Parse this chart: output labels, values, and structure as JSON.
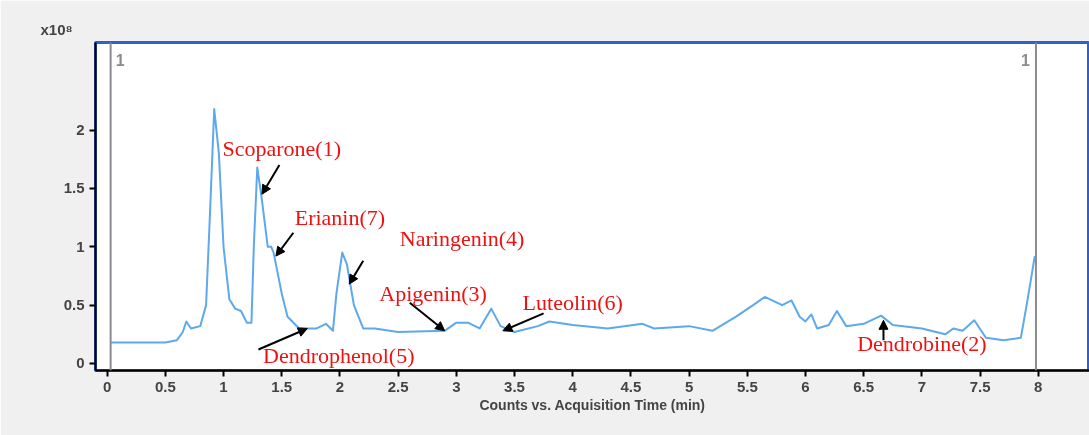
{
  "chart_data": {
    "type": "line",
    "xlabel": "Counts vs. Acquisition Time (min)",
    "ylabel": "x10⁸",
    "xlim": [
      -0.1,
      8.44
    ],
    "ylim": [
      -0.06,
      2.75
    ],
    "xticks": [
      0,
      0.5,
      1,
      1.5,
      2,
      2.5,
      3,
      3.5,
      4,
      4.5,
      5,
      5.5,
      6,
      6.5,
      7,
      7.5,
      8
    ],
    "yticks": [
      0,
      0.5,
      1,
      1.5,
      2
    ],
    "grid": false,
    "marker": "none",
    "line_style": "solid",
    "x": [
      0.03,
      0.5,
      0.6,
      0.65,
      0.68,
      0.72,
      0.8,
      0.85,
      0.88,
      0.92,
      0.96,
      1.0,
      1.05,
      1.1,
      1.15,
      1.2,
      1.24,
      1.26,
      1.29,
      1.33,
      1.38,
      1.41,
      1.43,
      1.5,
      1.55,
      1.65,
      1.8,
      1.88,
      1.94,
      1.97,
      2.02,
      2.06,
      2.12,
      2.2,
      2.3,
      2.5,
      2.9,
      3.0,
      3.1,
      3.2,
      3.3,
      3.38,
      3.5,
      3.7,
      3.8,
      4.0,
      4.3,
      4.6,
      4.7,
      5.0,
      5.2,
      5.4,
      5.55,
      5.65,
      5.8,
      5.88,
      5.95,
      6.0,
      6.05,
      6.1,
      6.2,
      6.27,
      6.35,
      6.5,
      6.65,
      6.75,
      7.0,
      7.2,
      7.27,
      7.35,
      7.45,
      7.55,
      7.7,
      7.85,
      7.9,
      7.97
    ],
    "series": [
      {
        "color": "#5ea8ec",
        "values": [
          0.18,
          0.18,
          0.2,
          0.27,
          0.36,
          0.3,
          0.32,
          0.5,
          1.2,
          2.18,
          1.8,
          1.0,
          0.55,
          0.47,
          0.45,
          0.35,
          0.35,
          1.0,
          1.68,
          1.4,
          1.0,
          1.0,
          0.95,
          0.6,
          0.4,
          0.3,
          0.3,
          0.34,
          0.28,
          0.6,
          0.95,
          0.85,
          0.5,
          0.3,
          0.3,
          0.27,
          0.28,
          0.35,
          0.35,
          0.3,
          0.47,
          0.32,
          0.27,
          0.32,
          0.36,
          0.33,
          0.3,
          0.34,
          0.3,
          0.32,
          0.28,
          0.4,
          0.5,
          0.57,
          0.5,
          0.54,
          0.4,
          0.36,
          0.42,
          0.3,
          0.33,
          0.45,
          0.32,
          0.34,
          0.41,
          0.33,
          0.3,
          0.25,
          0.3,
          0.28,
          0.37,
          0.22,
          0.2,
          0.22,
          0.5,
          0.92
        ]
      }
    ],
    "ref_lines": [
      {
        "axis": "x",
        "value": 0.03,
        "color": "#8c8c8c"
      },
      {
        "axis": "x",
        "value": 7.98,
        "color": "#8c8c8c"
      }
    ],
    "annotations": [
      {
        "text": "1",
        "x": 0.03,
        "y": 2.55
      },
      {
        "text": "1",
        "x": 7.98,
        "y": 2.55
      },
      {
        "text": "Scoparone(1)",
        "x": 1.33,
        "y": 1.45
      },
      {
        "text": "Erianin(7)",
        "x": 1.45,
        "y": 0.92
      },
      {
        "text": "Naringenin(4)",
        "x": 2.08,
        "y": 0.68
      },
      {
        "text": "Apigenin(3)",
        "x": 2.9,
        "y": 0.28
      },
      {
        "text": "Luteolin(6)",
        "x": 3.4,
        "y": 0.28
      },
      {
        "text": "Dendrophenol(5)",
        "x": 1.72,
        "y": 0.3
      },
      {
        "text": "Dendrobine(2)",
        "x": 6.67,
        "y": 0.37
      }
    ]
  }
}
